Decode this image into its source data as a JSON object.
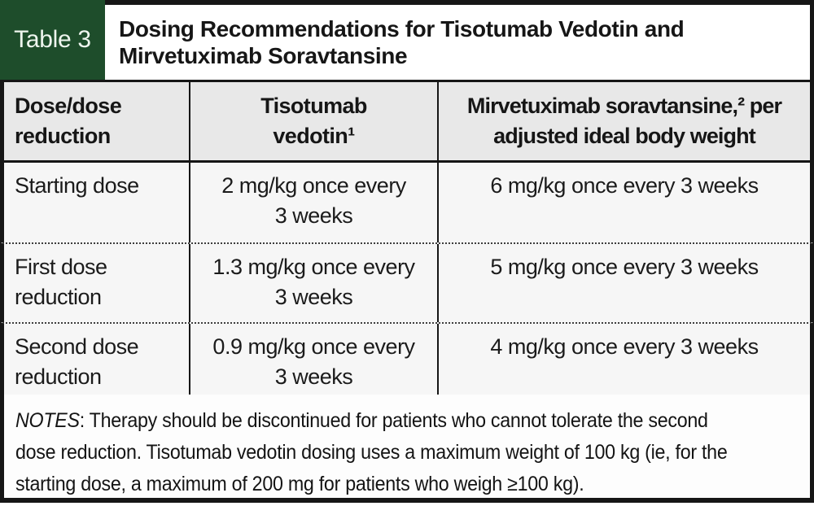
{
  "header": {
    "tag": "Table 3",
    "title_line1": "Dosing Recommendations for Tisotumab Vedotin and",
    "title_line2": "Mirvetuximab Soravtansine"
  },
  "table": {
    "columns": [
      {
        "label": "Dose/dose reduction"
      },
      {
        "line1": "Tisotumab",
        "line2": "vedotin¹"
      },
      {
        "line1": "Mirvetuximab soravtansine,² per",
        "line2": "adjusted ideal body weight"
      }
    ],
    "rows": [
      {
        "label": "Starting dose",
        "tisotumab_line1": "2 mg/kg once every",
        "tisotumab_line2": "3 weeks",
        "mirvetuximab": "6 mg/kg once every 3 weeks"
      },
      {
        "label": "First dose reduction",
        "tisotumab_line1": "1.3 mg/kg once every",
        "tisotumab_line2": "3 weeks",
        "mirvetuximab": "5 mg/kg once every 3 weeks"
      },
      {
        "label": "Second dose reduction",
        "tisotumab_line1": "0.9 mg/kg once every",
        "tisotumab_line2": "3 weeks",
        "mirvetuximab": "4 mg/kg once every 3 weeks"
      }
    ]
  },
  "notes": {
    "label": "NOTES",
    "line1_rest": ": Therapy should be discontinued for patients who cannot tolerate the second",
    "line2": "dose reduction. Tisotumab vedotin dosing uses a maximum weight of 100 kg (ie, for the",
    "line3": "starting dose, a maximum of 200 mg for patients who weigh ≥100 kg)."
  },
  "colors": {
    "accent_green": "#1e4d2b",
    "header_row_bg": "#e8e8e8",
    "data_row_bg": "#f6f6f6",
    "border_black": "#161616"
  }
}
